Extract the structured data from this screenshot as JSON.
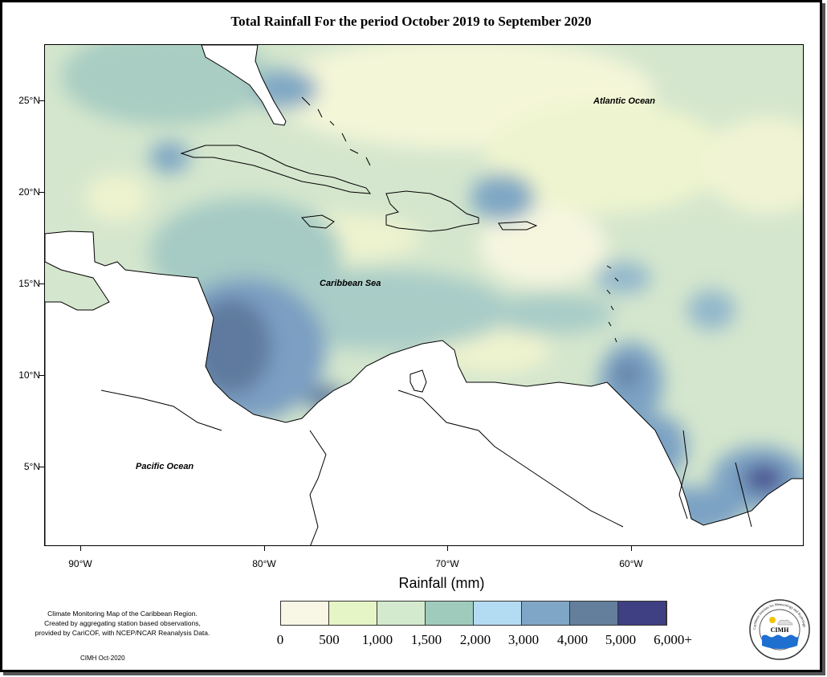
{
  "title": "Total Rainfall For the period October 2019 to September 2020",
  "map": {
    "ocean_labels": [
      "Atlantic Ocean",
      "Caribbean Sea",
      "Pacific Ocean"
    ],
    "lat_ticks": [
      "25°N",
      "20°N",
      "15°N",
      "10°N",
      "5°N"
    ],
    "lon_ticks": [
      "90°W",
      "80°W",
      "70°W",
      "60°W"
    ]
  },
  "legend": {
    "title": "Rainfall (mm)",
    "labels": [
      "0",
      "500",
      "1,000",
      "1,500",
      "2,000",
      "3,000",
      "4,000",
      "5,000",
      "6,000+"
    ],
    "colors": [
      "#f8f6e4",
      "#e6f5c6",
      "#d4eace",
      "#9fcbbd",
      "#b3dcf2",
      "#7fa6c6",
      "#637f9c",
      "#3f3f83"
    ]
  },
  "credits": {
    "lines": [
      "Climate Monitoring Map of the Caribbean Region.",
      "Created by aggregating station based observations,",
      "provided by CariCOF, with NCEP/NCAR Reanalysis Data."
    ],
    "footer": "CIMH Oct-2020"
  },
  "logo": {
    "text": "CIMH",
    "ring_text": "Caribbean Institute for Meteorology and Hydrology"
  }
}
